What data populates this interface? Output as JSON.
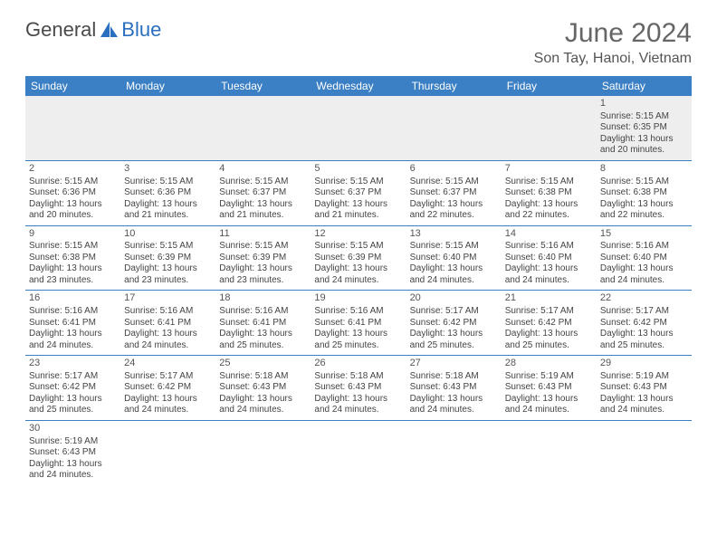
{
  "brand": {
    "part1": "General",
    "part2": "Blue",
    "logoColor": "#2a6fbf"
  },
  "header": {
    "title": "June 2024",
    "location": "Son Tay, Hanoi, Vietnam"
  },
  "colors": {
    "headerBg": "#3b7fc4",
    "headerText": "#ffffff",
    "rowAlt": "#eeeeee"
  },
  "weekdays": [
    "Sunday",
    "Monday",
    "Tuesday",
    "Wednesday",
    "Thursday",
    "Friday",
    "Saturday"
  ],
  "weeks": [
    [
      {
        "day": "",
        "lines": []
      },
      {
        "day": "",
        "lines": []
      },
      {
        "day": "",
        "lines": []
      },
      {
        "day": "",
        "lines": []
      },
      {
        "day": "",
        "lines": []
      },
      {
        "day": "",
        "lines": []
      },
      {
        "day": "1",
        "lines": [
          "Sunrise: 5:15 AM",
          "Sunset: 6:35 PM",
          "Daylight: 13 hours and 20 minutes."
        ]
      }
    ],
    [
      {
        "day": "2",
        "lines": [
          "Sunrise: 5:15 AM",
          "Sunset: 6:36 PM",
          "Daylight: 13 hours and 20 minutes."
        ]
      },
      {
        "day": "3",
        "lines": [
          "Sunrise: 5:15 AM",
          "Sunset: 6:36 PM",
          "Daylight: 13 hours and 21 minutes."
        ]
      },
      {
        "day": "4",
        "lines": [
          "Sunrise: 5:15 AM",
          "Sunset: 6:37 PM",
          "Daylight: 13 hours and 21 minutes."
        ]
      },
      {
        "day": "5",
        "lines": [
          "Sunrise: 5:15 AM",
          "Sunset: 6:37 PM",
          "Daylight: 13 hours and 21 minutes."
        ]
      },
      {
        "day": "6",
        "lines": [
          "Sunrise: 5:15 AM",
          "Sunset: 6:37 PM",
          "Daylight: 13 hours and 22 minutes."
        ]
      },
      {
        "day": "7",
        "lines": [
          "Sunrise: 5:15 AM",
          "Sunset: 6:38 PM",
          "Daylight: 13 hours and 22 minutes."
        ]
      },
      {
        "day": "8",
        "lines": [
          "Sunrise: 5:15 AM",
          "Sunset: 6:38 PM",
          "Daylight: 13 hours and 22 minutes."
        ]
      }
    ],
    [
      {
        "day": "9",
        "lines": [
          "Sunrise: 5:15 AM",
          "Sunset: 6:38 PM",
          "Daylight: 13 hours and 23 minutes."
        ]
      },
      {
        "day": "10",
        "lines": [
          "Sunrise: 5:15 AM",
          "Sunset: 6:39 PM",
          "Daylight: 13 hours and 23 minutes."
        ]
      },
      {
        "day": "11",
        "lines": [
          "Sunrise: 5:15 AM",
          "Sunset: 6:39 PM",
          "Daylight: 13 hours and 23 minutes."
        ]
      },
      {
        "day": "12",
        "lines": [
          "Sunrise: 5:15 AM",
          "Sunset: 6:39 PM",
          "Daylight: 13 hours and 24 minutes."
        ]
      },
      {
        "day": "13",
        "lines": [
          "Sunrise: 5:15 AM",
          "Sunset: 6:40 PM",
          "Daylight: 13 hours and 24 minutes."
        ]
      },
      {
        "day": "14",
        "lines": [
          "Sunrise: 5:16 AM",
          "Sunset: 6:40 PM",
          "Daylight: 13 hours and 24 minutes."
        ]
      },
      {
        "day": "15",
        "lines": [
          "Sunrise: 5:16 AM",
          "Sunset: 6:40 PM",
          "Daylight: 13 hours and 24 minutes."
        ]
      }
    ],
    [
      {
        "day": "16",
        "lines": [
          "Sunrise: 5:16 AM",
          "Sunset: 6:41 PM",
          "Daylight: 13 hours and 24 minutes."
        ]
      },
      {
        "day": "17",
        "lines": [
          "Sunrise: 5:16 AM",
          "Sunset: 6:41 PM",
          "Daylight: 13 hours and 24 minutes."
        ]
      },
      {
        "day": "18",
        "lines": [
          "Sunrise: 5:16 AM",
          "Sunset: 6:41 PM",
          "Daylight: 13 hours and 25 minutes."
        ]
      },
      {
        "day": "19",
        "lines": [
          "Sunrise: 5:16 AM",
          "Sunset: 6:41 PM",
          "Daylight: 13 hours and 25 minutes."
        ]
      },
      {
        "day": "20",
        "lines": [
          "Sunrise: 5:17 AM",
          "Sunset: 6:42 PM",
          "Daylight: 13 hours and 25 minutes."
        ]
      },
      {
        "day": "21",
        "lines": [
          "Sunrise: 5:17 AM",
          "Sunset: 6:42 PM",
          "Daylight: 13 hours and 25 minutes."
        ]
      },
      {
        "day": "22",
        "lines": [
          "Sunrise: 5:17 AM",
          "Sunset: 6:42 PM",
          "Daylight: 13 hours and 25 minutes."
        ]
      }
    ],
    [
      {
        "day": "23",
        "lines": [
          "Sunrise: 5:17 AM",
          "Sunset: 6:42 PM",
          "Daylight: 13 hours and 25 minutes."
        ]
      },
      {
        "day": "24",
        "lines": [
          "Sunrise: 5:17 AM",
          "Sunset: 6:42 PM",
          "Daylight: 13 hours and 24 minutes."
        ]
      },
      {
        "day": "25",
        "lines": [
          "Sunrise: 5:18 AM",
          "Sunset: 6:43 PM",
          "Daylight: 13 hours and 24 minutes."
        ]
      },
      {
        "day": "26",
        "lines": [
          "Sunrise: 5:18 AM",
          "Sunset: 6:43 PM",
          "Daylight: 13 hours and 24 minutes."
        ]
      },
      {
        "day": "27",
        "lines": [
          "Sunrise: 5:18 AM",
          "Sunset: 6:43 PM",
          "Daylight: 13 hours and 24 minutes."
        ]
      },
      {
        "day": "28",
        "lines": [
          "Sunrise: 5:19 AM",
          "Sunset: 6:43 PM",
          "Daylight: 13 hours and 24 minutes."
        ]
      },
      {
        "day": "29",
        "lines": [
          "Sunrise: 5:19 AM",
          "Sunset: 6:43 PM",
          "Daylight: 13 hours and 24 minutes."
        ]
      }
    ],
    [
      {
        "day": "30",
        "lines": [
          "Sunrise: 5:19 AM",
          "Sunset: 6:43 PM",
          "Daylight: 13 hours and 24 minutes."
        ]
      },
      {
        "day": "",
        "lines": []
      },
      {
        "day": "",
        "lines": []
      },
      {
        "day": "",
        "lines": []
      },
      {
        "day": "",
        "lines": []
      },
      {
        "day": "",
        "lines": []
      },
      {
        "day": "",
        "lines": []
      }
    ]
  ]
}
